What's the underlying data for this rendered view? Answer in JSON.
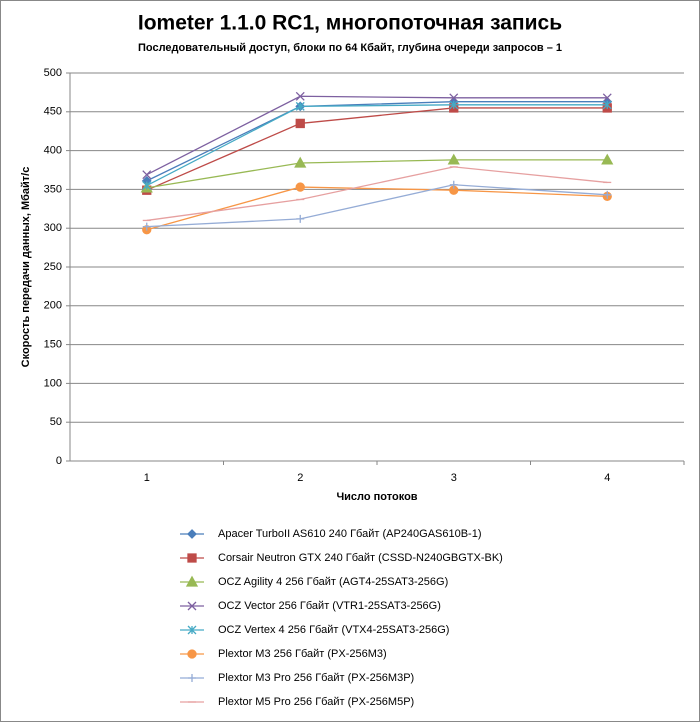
{
  "chart_data": {
    "type": "line",
    "title": "Iometer 1.1.0 RC1, многопоточная запись",
    "subtitle": "Последовательный  доступ, блоки по 64 Кбайт,  глубина очереди запросов – 1",
    "x_label": "Число  потоков",
    "y_label": "Скорость  передачи данных, Мбайт/с",
    "categories": [
      "1",
      "2",
      "3",
      "4"
    ],
    "ylim": [
      0,
      500
    ],
    "yticks": [
      0,
      50,
      100,
      150,
      200,
      250,
      300,
      350,
      400,
      450,
      500
    ],
    "grid": true,
    "legend": "bottom",
    "series": [
      {
        "name": "Apacer TurboII AS610 240 Гбайт (AP240GAS610B-1)",
        "color": "#4a7ebb",
        "marker": "diamond",
        "values": [
          361,
          457,
          463,
          463
        ]
      },
      {
        "name": "Corsair Neutron GTX 240 Гбайт (CSSD-N240GBGTX-BK)",
        "color": "#be4b48",
        "marker": "square",
        "values": [
          349,
          435,
          455,
          455
        ]
      },
      {
        "name": "OCZ Agility 4 256 Гбайт (AGT4-25SAT3-256G)",
        "color": "#98b954",
        "marker": "triangle",
        "values": [
          352,
          384,
          388,
          388
        ]
      },
      {
        "name": "OCZ Vector  256 Гбайт (VTR1-25SAT3-256G)",
        "color": "#7d60a0",
        "marker": "cross",
        "values": [
          369,
          470,
          468,
          468
        ]
      },
      {
        "name": "OCZ Vertex  4 256 Гбайт (VTX4-25SAT3-256G)",
        "color": "#46aac5",
        "marker": "star",
        "values": [
          355,
          457,
          459,
          459
        ]
      },
      {
        "name": "Plextor M3 256 Гбайт (PX-256M3)",
        "color": "#f79646",
        "marker": "circle",
        "values": [
          298,
          353,
          349,
          341
        ]
      },
      {
        "name": "Plextor M3 Pro 256 Гбайт (PX-256M3P)",
        "color": "#95acd6",
        "marker": "plus",
        "values": [
          302,
          312,
          356,
          343
        ]
      },
      {
        "name": "Plextor M5 Pro 256 Гбайт (PX-256M5P)",
        "color": "#e6a0a0",
        "marker": "dash",
        "values": [
          310,
          337,
          379,
          359
        ]
      }
    ]
  }
}
